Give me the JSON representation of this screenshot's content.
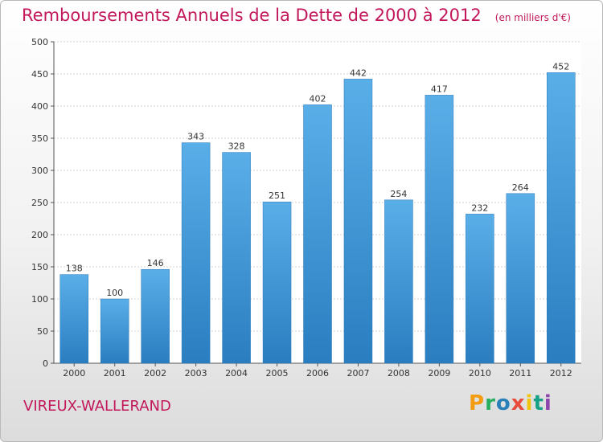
{
  "title": "Remboursements Annuels de la Dette de 2000 à 2012",
  "unit_note": "(en milliers d'€)",
  "location": "VIREUX-WALLERAND",
  "brand": "Proxiti",
  "colors": {
    "bar_top": "#5aaee8",
    "bar_bottom": "#2a7ec0",
    "title": "#c2185b"
  },
  "chart_data": {
    "type": "bar",
    "title": "Remboursements Annuels de la Dette de 2000 à 2012",
    "xlabel": "",
    "ylabel": "",
    "categories": [
      "2000",
      "2001",
      "2002",
      "2003",
      "2004",
      "2005",
      "2006",
      "2007",
      "2008",
      "2009",
      "2010",
      "2011",
      "2012"
    ],
    "values": [
      138,
      100,
      146,
      343,
      328,
      251,
      402,
      442,
      254,
      417,
      232,
      264,
      452
    ],
    "ylim": [
      0,
      500
    ],
    "yticks": [
      0,
      50,
      100,
      150,
      200,
      250,
      300,
      350,
      400,
      450,
      500
    ],
    "grid": true,
    "legend": "none"
  }
}
